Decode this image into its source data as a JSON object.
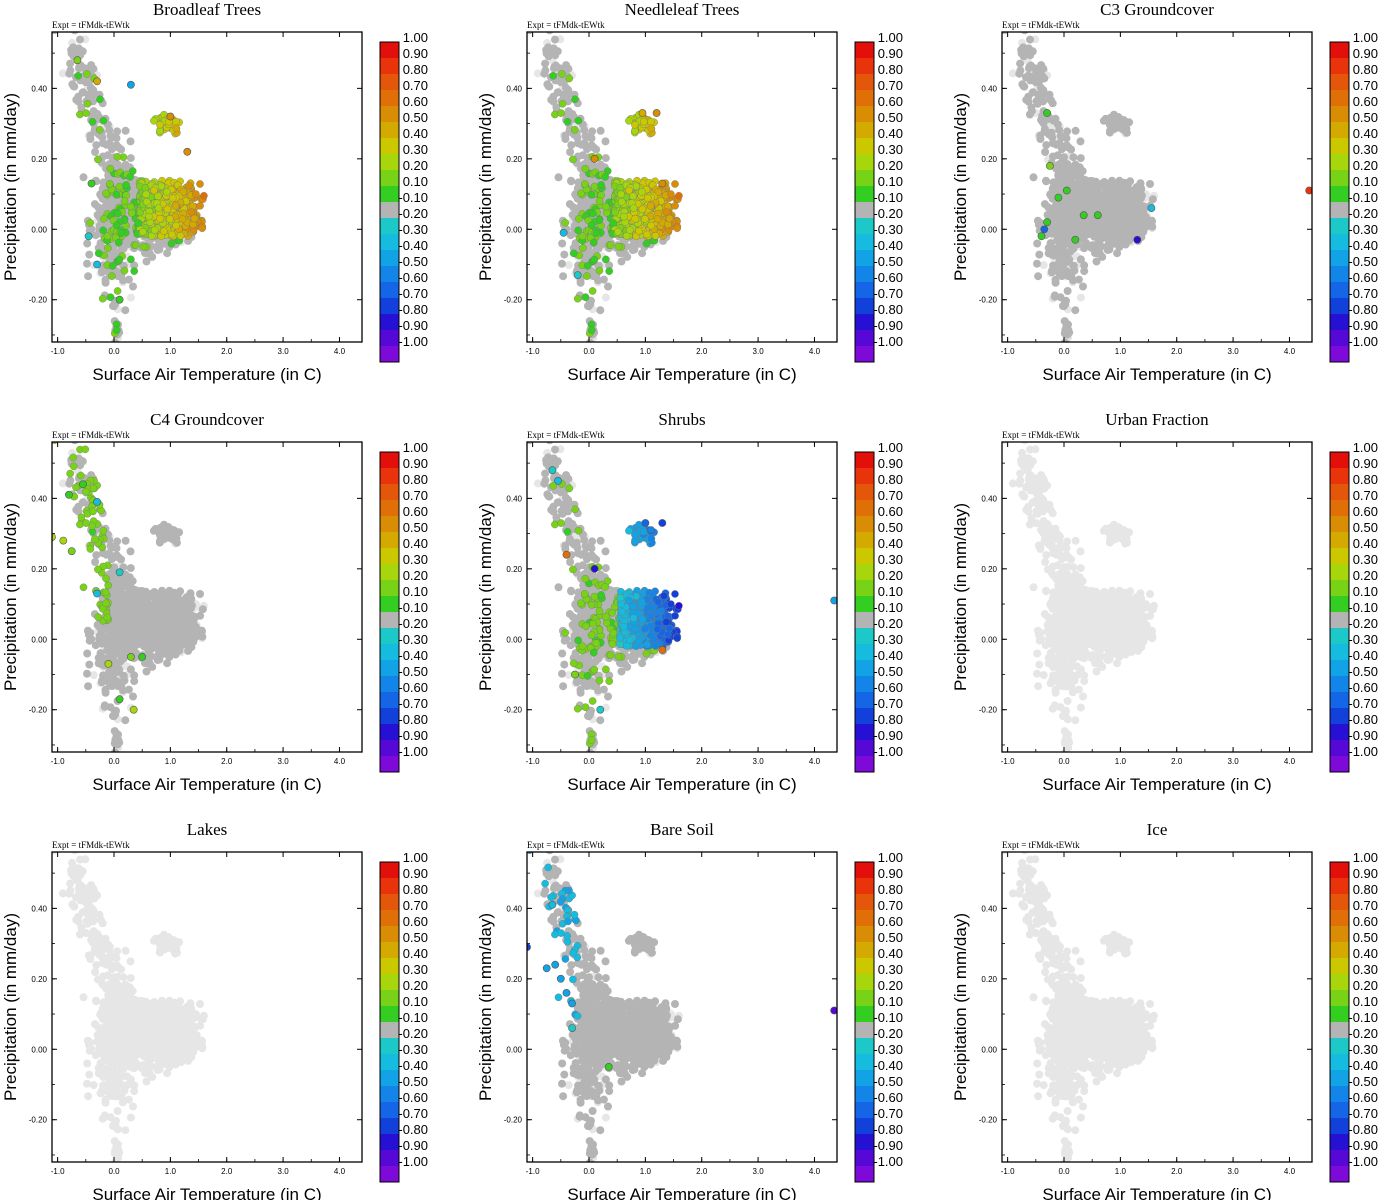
{
  "figure": {
    "experiment_label": "Expt = tFMdk-tEWtk",
    "colorbar_labels": [
      "1.00",
      "0.90",
      "0.80",
      "0.70",
      "0.60",
      "0.50",
      "0.40",
      "0.30",
      "0.20",
      "0.10",
      "-0.10",
      "-0.20",
      "-0.30",
      "-0.40",
      "-0.50",
      "-0.60",
      "-0.70",
      "-0.80",
      "-0.90",
      "-1.00"
    ],
    "colorbar_colors": [
      "#e30f0a",
      "#e8330b",
      "#e4560a",
      "#e06f08",
      "#d98d04",
      "#d4aa00",
      "#cbc800",
      "#a7d60c",
      "#78d316",
      "#34cd22",
      "#b4b4b4",
      "#1cc8c8",
      "#15bce0",
      "#12a2e6",
      "#1384e8",
      "#1566e6",
      "#1240da",
      "#2510d4",
      "#5508d6",
      "#7d0ad8"
    ],
    "zero_band_color": "#b4b4b4",
    "background_point_color": "#e6e6e6"
  },
  "chart_data": [
    {
      "type": "scatter",
      "title": "Broadleaf Trees",
      "xlabel": "Surface Air Temperature (in C)",
      "ylabel": "Precipitation (in mm/day)",
      "xlim": [
        -1.1,
        4.4
      ],
      "ylim": [
        -0.32,
        0.56
      ],
      "xticks": [
        "-1.0",
        "0.0",
        "1.0",
        "2.0",
        "3.0",
        "4.0"
      ],
      "yticks": [
        "0.40",
        "0.20",
        "0.00",
        "-0.20"
      ],
      "signal": "warm_positive",
      "highlights": [
        {
          "x": -0.65,
          "y": 0.48,
          "v": 0.2
        },
        {
          "x": -0.3,
          "y": 0.42,
          "v": 0.5
        },
        {
          "x": 0.3,
          "y": 0.41,
          "v": -0.4
        },
        {
          "x": 1.0,
          "y": 0.32,
          "v": 0.6
        },
        {
          "x": 1.3,
          "y": 0.22,
          "v": 0.6
        },
        {
          "x": -0.4,
          "y": 0.13,
          "v": 0.1
        },
        {
          "x": -0.45,
          "y": -0.02,
          "v": -0.2
        },
        {
          "x": -0.3,
          "y": -0.1,
          "v": -0.3
        },
        {
          "x": 0.1,
          "y": -0.2,
          "v": 0.1
        }
      ]
    },
    {
      "type": "scatter",
      "title": "Needleleaf Trees",
      "xlabel": "Surface Air Temperature (in C)",
      "ylabel": "Precipitation (in mm/day)",
      "xlim": [
        -1.1,
        4.4
      ],
      "ylim": [
        -0.32,
        0.56
      ],
      "xticks": [
        "-1.0",
        "0.0",
        "1.0",
        "2.0",
        "3.0",
        "4.0"
      ],
      "yticks": [
        "0.40",
        "0.20",
        "0.00",
        "-0.20"
      ],
      "signal": "warm_positive",
      "highlights": [
        {
          "x": 0.95,
          "y": 0.33,
          "v": 0.5
        },
        {
          "x": 1.2,
          "y": 0.33,
          "v": 0.6
        },
        {
          "x": 0.1,
          "y": 0.2,
          "v": 0.6
        },
        {
          "x": -0.45,
          "y": -0.01,
          "v": -0.3
        },
        {
          "x": -0.2,
          "y": -0.13,
          "v": -0.2
        },
        {
          "x": 1.3,
          "y": 0.13,
          "v": 0.6
        }
      ]
    },
    {
      "type": "scatter",
      "title": "C3 Groundcover",
      "xlabel": "Surface Air Temperature (in C)",
      "ylabel": "Precipitation (in mm/day)",
      "xlim": [
        -1.1,
        4.4
      ],
      "ylim": [
        -0.32,
        0.56
      ],
      "xticks": [
        "-1.0",
        "0.0",
        "1.0",
        "2.0",
        "3.0",
        "4.0"
      ],
      "yticks": [
        "0.40",
        "0.20",
        "0.00",
        "-0.20"
      ],
      "signal": "sparse",
      "highlights": [
        {
          "x": -0.3,
          "y": 0.33,
          "v": 0.1
        },
        {
          "x": -0.25,
          "y": 0.18,
          "v": 0.2
        },
        {
          "x": 0.05,
          "y": 0.11,
          "v": 0.1
        },
        {
          "x": -0.1,
          "y": 0.09,
          "v": 0.1
        },
        {
          "x": -0.3,
          "y": 0.02,
          "v": 0.1
        },
        {
          "x": -0.4,
          "y": -0.02,
          "v": 0.1
        },
        {
          "x": 0.2,
          "y": -0.03,
          "v": 0.1
        },
        {
          "x": -0.35,
          "y": 0.0,
          "v": -0.6
        },
        {
          "x": 0.6,
          "y": 0.04,
          "v": 0.1
        },
        {
          "x": 0.35,
          "y": 0.04,
          "v": 0.1
        },
        {
          "x": 1.3,
          "y": -0.03,
          "v": -0.8
        },
        {
          "x": 1.55,
          "y": 0.06,
          "v": -0.3
        },
        {
          "x": 4.35,
          "y": 0.11,
          "v": 0.9
        }
      ]
    },
    {
      "type": "scatter",
      "title": "C4 Groundcover",
      "xlabel": "Surface Air Temperature (in C)",
      "ylabel": "Precipitation (in mm/day)",
      "xlim": [
        -1.1,
        4.4
      ],
      "ylim": [
        -0.32,
        0.56
      ],
      "xticks": [
        "-1.0",
        "0.0",
        "1.0",
        "2.0",
        "3.0",
        "4.0"
      ],
      "yticks": [
        "0.40",
        "0.20",
        "0.00",
        "-0.20"
      ],
      "signal": "cold_positive",
      "highlights": [
        {
          "x": -1.1,
          "y": 0.29,
          "v": 0.3
        },
        {
          "x": -0.9,
          "y": 0.28,
          "v": 0.3
        },
        {
          "x": -0.75,
          "y": 0.25,
          "v": 0.2
        },
        {
          "x": -0.55,
          "y": 0.44,
          "v": 0.1
        },
        {
          "x": -0.8,
          "y": 0.41,
          "v": 0.1
        },
        {
          "x": -0.3,
          "y": 0.39,
          "v": -0.3
        },
        {
          "x": 0.5,
          "y": -0.05,
          "v": 0.1
        },
        {
          "x": 0.3,
          "y": -0.05,
          "v": 0.2
        },
        {
          "x": -0.1,
          "y": -0.07,
          "v": 0.3
        },
        {
          "x": 0.35,
          "y": -0.2,
          "v": 0.3
        },
        {
          "x": 0.1,
          "y": -0.17,
          "v": 0.1
        },
        {
          "x": 0.1,
          "y": 0.19,
          "v": -0.2
        },
        {
          "x": -0.3,
          "y": 0.13,
          "v": -0.3
        }
      ]
    },
    {
      "type": "scatter",
      "title": "Shrubs",
      "xlabel": "Surface Air Temperature (in C)",
      "ylabel": "Precipitation (in mm/day)",
      "xlim": [
        -1.1,
        4.4
      ],
      "ylim": [
        -0.32,
        0.56
      ],
      "xticks": [
        "-1.0",
        "0.0",
        "1.0",
        "2.0",
        "3.0",
        "4.0"
      ],
      "yticks": [
        "0.40",
        "0.20",
        "0.00",
        "-0.20"
      ],
      "signal": "warm_negative",
      "highlights": [
        {
          "x": -0.65,
          "y": 0.48,
          "v": -0.2
        },
        {
          "x": -0.55,
          "y": 0.45,
          "v": -0.3
        },
        {
          "x": 1.0,
          "y": 0.33,
          "v": -0.6
        },
        {
          "x": 1.3,
          "y": 0.33,
          "v": -0.7
        },
        {
          "x": 1.1,
          "y": 0.31,
          "v": -0.5
        },
        {
          "x": -0.4,
          "y": 0.24,
          "v": 0.7
        },
        {
          "x": 0.1,
          "y": 0.2,
          "v": -0.8
        },
        {
          "x": 1.3,
          "y": -0.03,
          "v": 0.7
        },
        {
          "x": 4.35,
          "y": 0.11,
          "v": -0.4
        },
        {
          "x": -0.25,
          "y": -0.1,
          "v": 0.2
        },
        {
          "x": 0.2,
          "y": -0.2,
          "v": -0.2
        }
      ]
    },
    {
      "type": "scatter",
      "title": "Urban Fraction",
      "xlabel": "Surface Air Temperature (in C)",
      "ylabel": "Precipitation (in mm/day)",
      "xlim": [
        -1.1,
        4.4
      ],
      "ylim": [
        -0.32,
        0.56
      ],
      "xticks": [
        "-1.0",
        "0.0",
        "1.0",
        "2.0",
        "3.0",
        "4.0"
      ],
      "yticks": [
        "0.40",
        "0.20",
        "0.00",
        "-0.20"
      ],
      "signal": "none",
      "highlights": []
    },
    {
      "type": "scatter",
      "title": "Lakes",
      "xlabel": "Surface Air Temperature (in C)",
      "ylabel": "Precipitation (in mm/day)",
      "xlim": [
        -1.1,
        4.4
      ],
      "ylim": [
        -0.32,
        0.56
      ],
      "xticks": [
        "-1.0",
        "0.0",
        "1.0",
        "2.0",
        "3.0",
        "4.0"
      ],
      "yticks": [
        "0.40",
        "0.20",
        "0.00",
        "-0.20"
      ],
      "signal": "none",
      "highlights": []
    },
    {
      "type": "scatter",
      "title": "Bare Soil",
      "xlabel": "Surface Air Temperature (in C)",
      "ylabel": "Precipitation (in mm/day)",
      "xlim": [
        -1.1,
        4.4
      ],
      "ylim": [
        -0.32,
        0.56
      ],
      "xticks": [
        "-1.0",
        "0.0",
        "1.0",
        "2.0",
        "3.0",
        "4.0"
      ],
      "yticks": [
        "0.40",
        "0.20",
        "0.00",
        "-0.20"
      ],
      "signal": "cold_negative",
      "highlights": [
        {
          "x": -1.1,
          "y": 0.29,
          "v": -0.7
        },
        {
          "x": -0.75,
          "y": 0.23,
          "v": -0.4
        },
        {
          "x": -0.6,
          "y": 0.24,
          "v": -0.4
        },
        {
          "x": -0.65,
          "y": 0.41,
          "v": -0.3
        },
        {
          "x": -0.5,
          "y": 0.2,
          "v": -0.4
        },
        {
          "x": -0.4,
          "y": 0.16,
          "v": -0.4
        },
        {
          "x": -0.3,
          "y": 0.13,
          "v": -0.4
        },
        {
          "x": -0.3,
          "y": 0.06,
          "v": -0.2
        },
        {
          "x": 0.35,
          "y": -0.05,
          "v": 0.1
        },
        {
          "x": 4.35,
          "y": 0.11,
          "v": -0.9
        }
      ]
    },
    {
      "type": "scatter",
      "title": "Ice",
      "xlabel": "Surface Air Temperature (in C)",
      "ylabel": "Precipitation (in mm/day)",
      "xlim": [
        -1.1,
        4.4
      ],
      "ylim": [
        -0.32,
        0.56
      ],
      "xticks": [
        "-1.0",
        "0.0",
        "1.0",
        "2.0",
        "3.0",
        "4.0"
      ],
      "yticks": [
        "0.40",
        "0.20",
        "0.00",
        "-0.20"
      ],
      "signal": "none",
      "highlights": []
    }
  ]
}
